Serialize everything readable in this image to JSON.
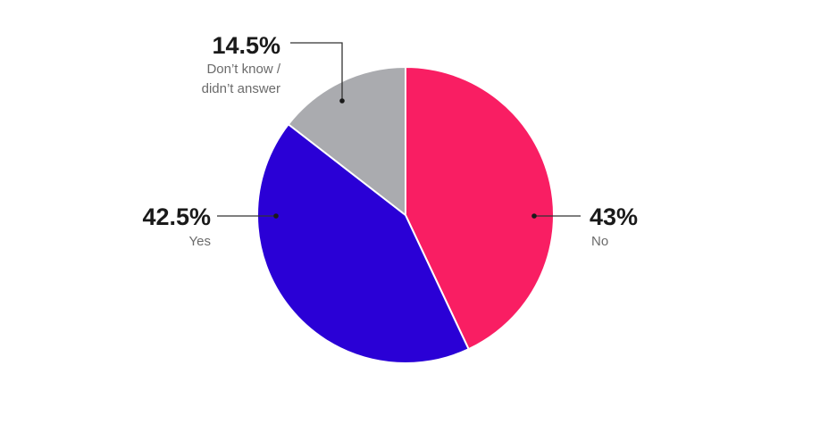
{
  "chart_data": {
    "type": "pie",
    "start_angle_deg": 0,
    "direction": "clockwise",
    "slices": [
      {
        "label": "No",
        "value": 43,
        "value_label": "43%",
        "color": "#f91e63"
      },
      {
        "label": "Yes",
        "value": 42.5,
        "value_label": "42.5%",
        "color": "#2a00d6"
      },
      {
        "label_lines": [
          "Don’t know /",
          "didn’t answer"
        ],
        "value": 14.5,
        "value_label": "14.5%",
        "color": "#aaabaf"
      }
    ],
    "legend": "none"
  }
}
